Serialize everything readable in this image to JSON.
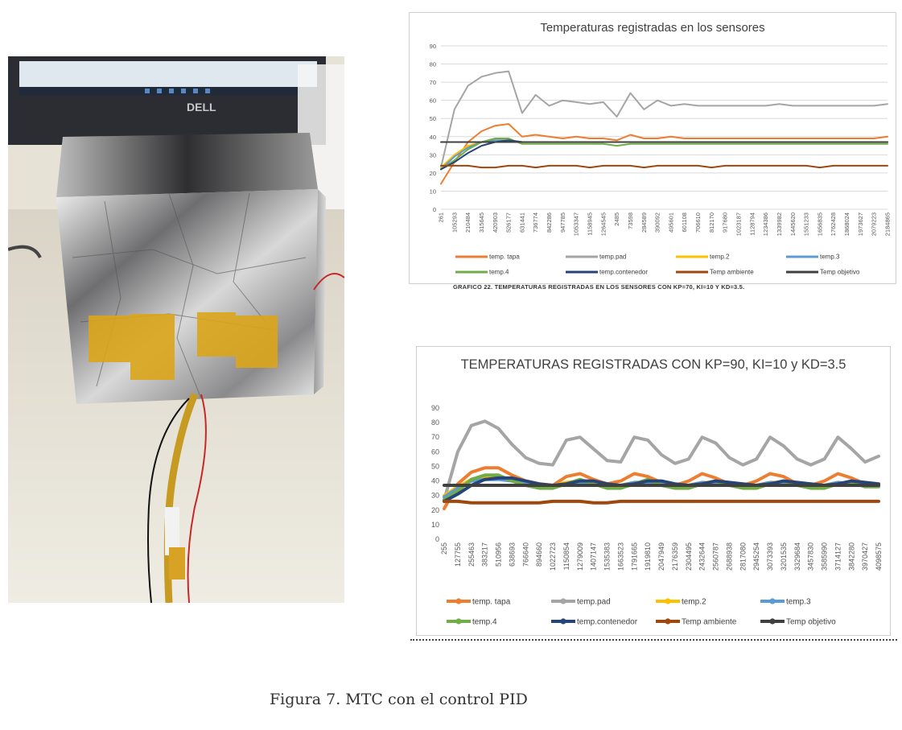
{
  "figure_caption": "Figura 7. MTC con el control PID",
  "chart1_caption": "GRAFICO 22. TEMPERATURAS REGISTRADAS EN LOS SENSORES CON KP=70, KI=10 Y KD=3.5.",
  "photo": {
    "monitor_brand": "DELL"
  },
  "colors": {
    "temp_tapa": "#ed7d31",
    "temp_pad": "#a5a5a5",
    "temp_2": "#ffc000",
    "temp_3": "#5b9bd5",
    "temp_4": "#70ad47",
    "temp_contenedor": "#264478",
    "temp_ambiente": "#9e480e",
    "temp_objetivo": "#404040"
  },
  "chart_data": [
    {
      "type": "line",
      "title": "Temperaturas registradas en los sensores",
      "ylim": [
        0,
        90
      ],
      "yticks": [
        "0",
        "10",
        "20",
        "30",
        "40",
        "50",
        "60",
        "70",
        "80",
        "90"
      ],
      "grid": true,
      "legend_position": "bottom",
      "categories": [
        "261",
        "105293",
        "210484",
        "315645",
        "420903",
        "526177",
        "631441",
        "736774",
        "842286",
        "947785",
        "1053347",
        "1158945",
        "1264545",
        "2485",
        "73598",
        "284589",
        "390092",
        "495601",
        "601108",
        "706610",
        "812170",
        "917680",
        "1023187",
        "1128794",
        "1234386",
        "1339982",
        "1445620",
        "1551233",
        "1656835",
        "1762428",
        "1868024",
        "1973627",
        "2079223",
        "2184865"
      ],
      "series": [
        {
          "name": "temp. tapa",
          "color_key": "temp_tapa",
          "values": [
            14,
            26,
            37,
            43,
            46,
            47,
            40,
            41,
            40,
            39,
            40,
            39,
            39,
            38,
            41,
            39,
            39,
            40,
            39,
            39,
            39,
            39,
            39,
            39,
            39,
            39,
            39,
            39,
            39,
            39,
            39,
            39,
            39,
            40
          ]
        },
        {
          "name": "temp.pad",
          "color_key": "temp_pad",
          "values": [
            23,
            55,
            68,
            73,
            75,
            76,
            53,
            63,
            57,
            60,
            59,
            58,
            59,
            51,
            64,
            55,
            60,
            57,
            58,
            57,
            57,
            57,
            57,
            57,
            57,
            58,
            57,
            57,
            57,
            57,
            57,
            57,
            57,
            58
          ]
        },
        {
          "name": "temp.2",
          "color_key": "temp_2",
          "values": [
            23,
            30,
            35,
            37,
            38,
            38,
            37,
            37,
            37,
            37,
            37,
            37,
            37,
            37,
            37,
            37,
            37,
            37,
            37,
            37,
            37,
            37,
            37,
            37,
            37,
            37,
            37,
            37,
            37,
            37,
            37,
            37,
            37,
            37
          ]
        },
        {
          "name": "temp.3",
          "color_key": "temp_3",
          "values": [
            22,
            29,
            34,
            37,
            38,
            38,
            37,
            37,
            37,
            37,
            37,
            37,
            37,
            37,
            37,
            37,
            37,
            37,
            37,
            37,
            37,
            37,
            37,
            37,
            37,
            37,
            37,
            37,
            37,
            37,
            37,
            37,
            37,
            37
          ]
        },
        {
          "name": "temp.4",
          "color_key": "temp_4",
          "values": [
            22,
            27,
            33,
            37,
            39,
            39,
            36,
            36,
            36,
            36,
            36,
            36,
            36,
            35,
            36,
            36,
            36,
            36,
            36,
            36,
            36,
            36,
            36,
            36,
            36,
            36,
            36,
            36,
            36,
            36,
            36,
            36,
            36,
            36
          ]
        },
        {
          "name": "temp.contenedor",
          "color_key": "temp_contenedor",
          "values": [
            22,
            26,
            31,
            35,
            37,
            38,
            37,
            37,
            37,
            37,
            37,
            37,
            37,
            37,
            37,
            37,
            37,
            37,
            37,
            37,
            37,
            37,
            37,
            37,
            37,
            37,
            37,
            37,
            37,
            37,
            37,
            37,
            37,
            37
          ]
        },
        {
          "name": "Temp ambiente",
          "color_key": "temp_ambiente",
          "values": [
            24,
            24,
            24,
            23,
            23,
            24,
            24,
            23,
            24,
            24,
            24,
            23,
            24,
            24,
            24,
            23,
            24,
            24,
            24,
            24,
            23,
            24,
            24,
            24,
            24,
            24,
            24,
            24,
            23,
            24,
            24,
            24,
            24,
            24
          ]
        },
        {
          "name": "Temp objetivo",
          "color_key": "temp_objetivo",
          "values": [
            37,
            37,
            37,
            37,
            37,
            37,
            37,
            37,
            37,
            37,
            37,
            37,
            37,
            37,
            37,
            37,
            37,
            37,
            37,
            37,
            37,
            37,
            37,
            37,
            37,
            37,
            37,
            37,
            37,
            37,
            37,
            37,
            37,
            37
          ]
        }
      ]
    },
    {
      "type": "line",
      "title": "TEMPERATURAS REGISTRADAS CON KP=90, KI=10 y KD=3.5",
      "ylim": [
        0,
        90
      ],
      "yticks": [
        "0",
        "10",
        "20",
        "30",
        "40",
        "50",
        "60",
        "70",
        "80",
        "90"
      ],
      "grid": false,
      "legend_position": "bottom",
      "categories": [
        "255",
        "127755",
        "255463",
        "383217",
        "510956",
        "638693",
        "766640",
        "894660",
        "1022723",
        "1150854",
        "1279009",
        "1407147",
        "1535383",
        "1663523",
        "1791665",
        "1919810",
        "2047949",
        "2176359",
        "2304495",
        "2432644",
        "2560787",
        "2688938",
        "2817080",
        "2945254",
        "3073393",
        "3201535",
        "3329684",
        "3457830",
        "3585990",
        "3714127",
        "3842280",
        "3970427",
        "4098575"
      ],
      "series": [
        {
          "name": "temp. tapa",
          "color_key": "temp_tapa",
          "values": [
            21,
            38,
            46,
            49,
            49,
            44,
            40,
            38,
            37,
            43,
            45,
            41,
            38,
            40,
            45,
            43,
            39,
            37,
            40,
            45,
            42,
            38,
            37,
            40,
            45,
            43,
            38,
            37,
            40,
            45,
            42,
            38,
            37
          ]
        },
        {
          "name": "temp.pad",
          "color_key": "temp_pad",
          "values": [
            27,
            60,
            78,
            81,
            76,
            65,
            56,
            52,
            51,
            68,
            70,
            62,
            54,
            53,
            70,
            68,
            58,
            52,
            55,
            70,
            66,
            56,
            51,
            55,
            70,
            64,
            55,
            51,
            55,
            70,
            62,
            53,
            57
          ]
        },
        {
          "name": "temp.2",
          "color_key": "temp_2",
          "values": [
            30,
            36,
            41,
            42,
            42,
            40,
            38,
            37,
            37,
            39,
            40,
            38,
            37,
            37,
            39,
            39,
            38,
            37,
            37,
            39,
            39,
            37,
            37,
            37,
            39,
            39,
            37,
            37,
            37,
            39,
            38,
            37,
            37
          ]
        },
        {
          "name": "temp.3",
          "color_key": "temp_3",
          "values": [
            29,
            35,
            40,
            41,
            41,
            40,
            38,
            37,
            37,
            38,
            39,
            38,
            37,
            37,
            39,
            39,
            38,
            37,
            37,
            39,
            38,
            37,
            37,
            37,
            39,
            38,
            37,
            37,
            37,
            39,
            38,
            37,
            37
          ]
        },
        {
          "name": "temp.4",
          "color_key": "temp_4",
          "values": [
            27,
            33,
            41,
            44,
            44,
            40,
            37,
            35,
            35,
            38,
            41,
            38,
            35,
            35,
            38,
            41,
            37,
            35,
            35,
            38,
            40,
            37,
            35,
            35,
            38,
            40,
            37,
            35,
            35,
            38,
            39,
            36,
            36
          ]
        },
        {
          "name": "temp.contenedor",
          "color_key": "temp_contenedor",
          "values": [
            26,
            31,
            37,
            41,
            42,
            42,
            40,
            38,
            37,
            38,
            40,
            40,
            38,
            37,
            38,
            40,
            40,
            38,
            37,
            38,
            40,
            39,
            38,
            37,
            38,
            40,
            39,
            38,
            37,
            38,
            40,
            39,
            38
          ]
        },
        {
          "name": "Temp ambiente",
          "color_key": "temp_ambiente",
          "values": [
            26,
            26,
            25,
            25,
            25,
            25,
            25,
            25,
            26,
            26,
            26,
            25,
            25,
            26,
            26,
            26,
            26,
            26,
            26,
            26,
            26,
            26,
            26,
            26,
            26,
            26,
            26,
            26,
            26,
            26,
            26,
            26,
            26
          ]
        },
        {
          "name": "Temp objetivo",
          "color_key": "temp_objetivo",
          "values": [
            37,
            37,
            37,
            37,
            37,
            37,
            37,
            37,
            37,
            37,
            37,
            37,
            37,
            37,
            37,
            37,
            37,
            37,
            37,
            37,
            37,
            37,
            37,
            37,
            37,
            37,
            37,
            37,
            37,
            37,
            37,
            37,
            37
          ]
        }
      ]
    }
  ]
}
